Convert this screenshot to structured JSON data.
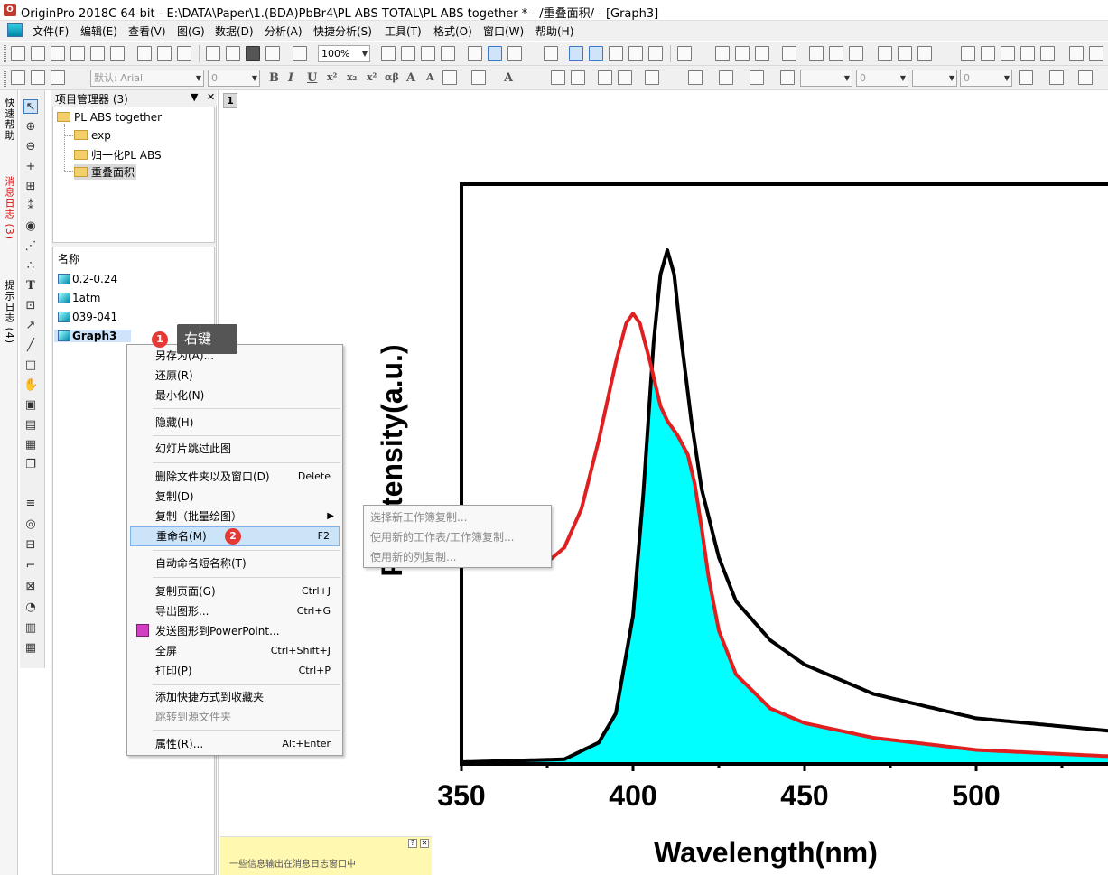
{
  "window": {
    "title": "OriginPro 2018C 64-bit - E:\\DATA\\Paper\\1.(BDA)PbBr4\\PL ABS TOTAL\\PL ABS together * - /重叠面积/ - [Graph3]"
  },
  "menu": [
    "文件(F)",
    "编辑(E)",
    "查看(V)",
    "图(G)",
    "数据(D)",
    "分析(A)",
    "快捷分析(S)",
    "工具(T)",
    "格式(O)",
    "窗口(W)",
    "帮助(H)"
  ],
  "toolbar": {
    "zoom": "100%",
    "font_name": "默认: Arial",
    "font_size": "0",
    "line_width": "0",
    "pattern_value": "0"
  },
  "side_tabs": [
    "快速帮助",
    "消息日志 (3)",
    "提示日志 (4)"
  ],
  "project_manager": {
    "title": "项目管理器 (3)",
    "tree": {
      "root": "PL ABS together",
      "children": [
        "exp",
        "归一化PL ABS",
        "重叠面积"
      ],
      "selected": "重叠面积"
    },
    "list_header": "名称",
    "items": [
      "0.2-0.24",
      "1atm",
      "039-041",
      "Graph3"
    ]
  },
  "graph_tab": "1",
  "message_box": {
    "text": "一些信息输出在消息日志窗口中"
  },
  "annotations": {
    "badge1": "1",
    "badge2": "2",
    "tooltip": "右键"
  },
  "context_menu": {
    "items": [
      {
        "label": "另存为(A)...",
        "shortcut": ""
      },
      {
        "label": "还原(R)",
        "shortcut": ""
      },
      {
        "label": "最小化(N)",
        "shortcut": ""
      },
      {
        "label": "隐藏(H)",
        "shortcut": ""
      },
      {
        "label": "幻灯片跳过此图",
        "shortcut": ""
      },
      {
        "label": "删除文件夹以及窗口(D)",
        "shortcut": "Delete"
      },
      {
        "label": "复制(D)",
        "shortcut": ""
      },
      {
        "label": "复制（批量绘图）",
        "shortcut": ""
      },
      {
        "label": "重命名(M)",
        "shortcut": "F2"
      },
      {
        "label": "自动命名短名称(T)",
        "shortcut": ""
      },
      {
        "label": "复制页面(G)",
        "shortcut": "Ctrl+J"
      },
      {
        "label": "导出图形...",
        "shortcut": "Ctrl+G"
      },
      {
        "label": "发送图形到PowerPoint...",
        "shortcut": ""
      },
      {
        "label": "全屏",
        "shortcut": "Ctrl+Shift+J"
      },
      {
        "label": "打印(P)",
        "shortcut": "Ctrl+P"
      },
      {
        "label": "添加快捷方式到收藏夹",
        "shortcut": ""
      },
      {
        "label": "跳转到源文件夹",
        "shortcut": ""
      },
      {
        "label": "属性(R)...",
        "shortcut": "Alt+Enter"
      }
    ],
    "submenu": [
      "选择新工作簿复制...",
      "使用新的工作表/工作簿复制...",
      "使用新的列复制..."
    ]
  },
  "chart_data": {
    "type": "line",
    "xlabel": "Wavelength(nm)",
    "ylabel": "PL Intensity(a.u.)",
    "xlim": [
      350,
      545
    ],
    "ylim": [
      0,
      1.1
    ],
    "xticks": [
      350,
      400,
      450,
      500
    ],
    "series": [
      {
        "name": "",
        "color": "#000000",
        "x": [
          350,
          380,
          390,
          395,
          400,
          403,
          406,
          408,
          410,
          412,
          414,
          417,
          420,
          425,
          430,
          440,
          450,
          470,
          500,
          545
        ],
        "y": [
          0,
          0.006,
          0.04,
          0.1,
          0.3,
          0.55,
          0.86,
          1.0,
          1.05,
          1.0,
          0.87,
          0.7,
          0.56,
          0.42,
          0.33,
          0.25,
          0.2,
          0.14,
          0.09,
          0.06
        ]
      },
      {
        "name": "",
        "color": "#e02020",
        "x": [
          350,
          360,
          370,
          375,
          380,
          385,
          390,
          395,
          398,
          400,
          402,
          405,
          408,
          410,
          413,
          416,
          418,
          420,
          422,
          425,
          430,
          440,
          450,
          470,
          500,
          545
        ],
        "y": [
          0.5,
          0.44,
          0.41,
          0.41,
          0.44,
          0.52,
          0.66,
          0.82,
          0.9,
          0.92,
          0.9,
          0.82,
          0.73,
          0.7,
          0.67,
          0.63,
          0.57,
          0.48,
          0.38,
          0.27,
          0.18,
          0.11,
          0.08,
          0.05,
          0.025,
          0.01
        ]
      }
    ],
    "overlap_fill_color": "#00ffff"
  }
}
